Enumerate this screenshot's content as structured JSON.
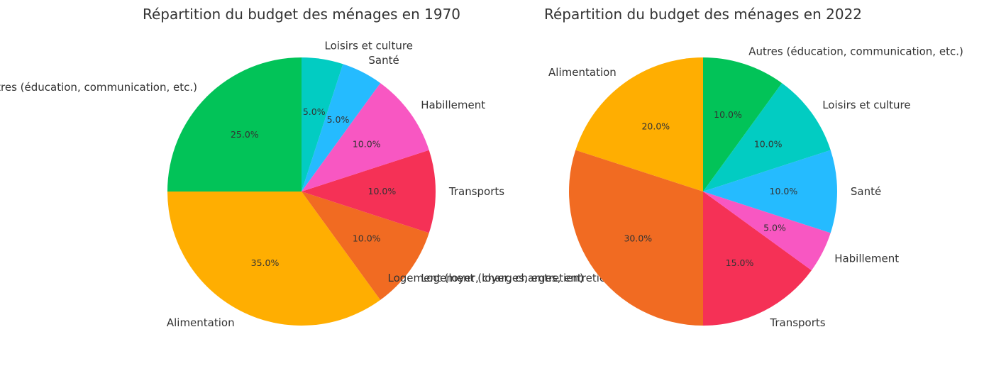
{
  "chart_data": [
    {
      "type": "pie",
      "title": "Répartition du budget des ménages en 1970",
      "slices": [
        {
          "label": "Autres (éducation, communication, etc.)",
          "value": 25.0,
          "pct_label": "25.0%",
          "color": "#02c358"
        },
        {
          "label": "Alimentation",
          "value": 35.0,
          "pct_label": "35.0%",
          "color": "#ffae01"
        },
        {
          "label": "Logement (loyer, charges, entretien)",
          "value": 10.0,
          "pct_label": "10.0%",
          "color": "#f16b22"
        },
        {
          "label": "Transports",
          "value": 10.0,
          "pct_label": "10.0%",
          "color": "#f53156"
        },
        {
          "label": "Habillement",
          "value": 10.0,
          "pct_label": "10.0%",
          "color": "#f857c2"
        },
        {
          "label": "Santé",
          "value": 5.0,
          "pct_label": "5.0%",
          "color": "#25bbff"
        },
        {
          "label": "Loisirs et culture",
          "value": 5.0,
          "pct_label": "5.0%",
          "color": "#02ccc2"
        }
      ]
    },
    {
      "type": "pie",
      "title": "Répartition du budget des ménages en 2022",
      "slices": [
        {
          "label": "Alimentation",
          "value": 20.0,
          "pct_label": "20.0%",
          "color": "#ffae01"
        },
        {
          "label": "Logement (loyer, charges, entretien)",
          "value": 30.0,
          "pct_label": "30.0%",
          "color": "#f16b22"
        },
        {
          "label": "Transports",
          "value": 15.0,
          "pct_label": "15.0%",
          "color": "#f53156"
        },
        {
          "label": "Habillement",
          "value": 5.0,
          "pct_label": "5.0%",
          "color": "#f857c2"
        },
        {
          "label": "Santé",
          "value": 10.0,
          "pct_label": "10.0%",
          "color": "#25bbff"
        },
        {
          "label": "Loisirs et culture",
          "value": 10.0,
          "pct_label": "10.0%",
          "color": "#02ccc2"
        },
        {
          "label": "Autres (éducation, communication, etc.)",
          "value": 10.0,
          "pct_label": "10.0%",
          "color": "#02c358"
        }
      ]
    }
  ]
}
